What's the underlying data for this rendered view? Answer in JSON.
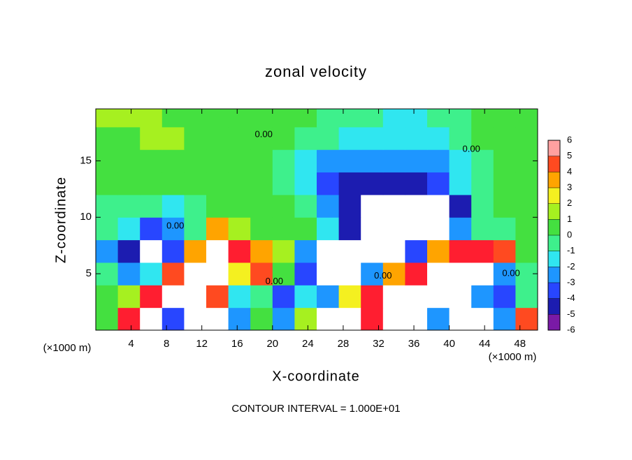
{
  "chart_data": {
    "type": "heatmap",
    "title": "zonal velocity",
    "x_label": "X-coordinate",
    "y_label": "Z-coordinate",
    "x_unit": "(×1000 m)",
    "y_unit": "(×1000 m)",
    "footer": "CONTOUR INTERVAL = 1.000E+01",
    "xlim": [
      0,
      50
    ],
    "ylim": [
      0,
      19.6
    ],
    "xticks": [
      4,
      8,
      12,
      16,
      20,
      24,
      28,
      32,
      36,
      40,
      44,
      48
    ],
    "yticks": [
      5,
      10,
      15
    ],
    "x": [
      1.25,
      3.75,
      6.25,
      8.75,
      11.25,
      13.75,
      16.25,
      18.75,
      21.25,
      23.75,
      26.25,
      28.75,
      31.25,
      33.75,
      36.25,
      38.75,
      41.25,
      43.75,
      46.25,
      48.75
    ],
    "y": [
      1,
      3,
      5,
      7,
      9,
      11,
      13,
      15,
      17,
      19
    ],
    "values": [
      [
        0.5,
        5,
        8,
        -4,
        8,
        8,
        -3,
        0.5,
        -3,
        1,
        8,
        8,
        5,
        8,
        8,
        -3,
        8,
        8,
        -3,
        4
      ],
      [
        0.5,
        1,
        5,
        8,
        8,
        4,
        -2,
        -1,
        -4,
        -2,
        -3,
        2,
        5,
        8,
        8,
        8,
        8,
        -3,
        -4,
        -1
      ],
      [
        -1,
        -3,
        -2,
        4,
        8,
        8,
        2,
        4,
        0.5,
        -4,
        -8,
        -8,
        -3,
        3,
        5,
        8,
        8,
        8,
        -3,
        -1
      ],
      [
        -3,
        -5,
        -8,
        -4,
        3,
        8,
        5,
        3,
        1,
        -3,
        -8,
        -8,
        -8,
        -8,
        -4,
        3,
        5,
        5,
        4,
        0
      ],
      [
        -1,
        -2,
        -4,
        -3,
        -1,
        3,
        1,
        0.5,
        0.5,
        0,
        -2,
        -5,
        -8,
        -8,
        -8,
        -8,
        -3,
        -0.5,
        -0.5,
        0
      ],
      [
        -0.5,
        -0.5,
        -1,
        -2,
        -1,
        0,
        0.5,
        0.5,
        0,
        -1,
        -3,
        -5,
        -8,
        -8,
        -8,
        -8,
        -5,
        -1,
        0,
        0.5
      ],
      [
        0,
        0,
        0.5,
        0.5,
        0.5,
        0.5,
        0.5,
        0,
        -0.5,
        -2,
        -4,
        -5,
        -5,
        -4.5,
        -4.5,
        -4,
        -2,
        -1,
        0,
        0.5
      ],
      [
        0.5,
        0.5,
        0.5,
        0.5,
        0.5,
        0.5,
        0.5,
        0,
        -0.5,
        -1.5,
        -2.5,
        -3,
        -3,
        -3,
        -3,
        -2.5,
        -1.5,
        -0.5,
        0.5,
        0.5
      ],
      [
        0.5,
        0.5,
        1,
        1,
        0.5,
        0.5,
        0.5,
        0.5,
        0,
        -0.5,
        -1,
        -1.5,
        -2,
        -2,
        -2,
        -1.5,
        -0.5,
        0.5,
        0.5,
        0.5
      ],
      [
        1.5,
        1.5,
        1,
        0.5,
        0.5,
        0.5,
        0.5,
        0.5,
        0,
        0,
        -0.5,
        -0.5,
        -1,
        -1.5,
        -1.5,
        -1,
        -0.5,
        0,
        0.5,
        0.5
      ]
    ],
    "colorbar_ticks": [
      6,
      5,
      4,
      3,
      2,
      1,
      0,
      -1,
      -2,
      -3,
      -4,
      -5,
      -6
    ],
    "colors": [
      "#7a1aa6",
      "#1c1cb0",
      "#2846ff",
      "#1e96ff",
      "#30e6f0",
      "#3ef08c",
      "#44e040",
      "#a6f020",
      "#f4f020",
      "#ffa400",
      "#ff4a20",
      "#ff1e30",
      "#ffa0a0"
    ],
    "contour_labels": [
      {
        "text": "0.00",
        "x": 19,
        "y": 17.3
      },
      {
        "text": "0.00",
        "x": 42.5,
        "y": 16
      },
      {
        "text": "0.00",
        "x": 9,
        "y": 9.2
      },
      {
        "text": "0.00",
        "x": 20.2,
        "y": 4.3
      },
      {
        "text": "0.00",
        "x": 32.5,
        "y": 4.8
      },
      {
        "text": "0.00",
        "x": 47,
        "y": 5
      }
    ]
  }
}
